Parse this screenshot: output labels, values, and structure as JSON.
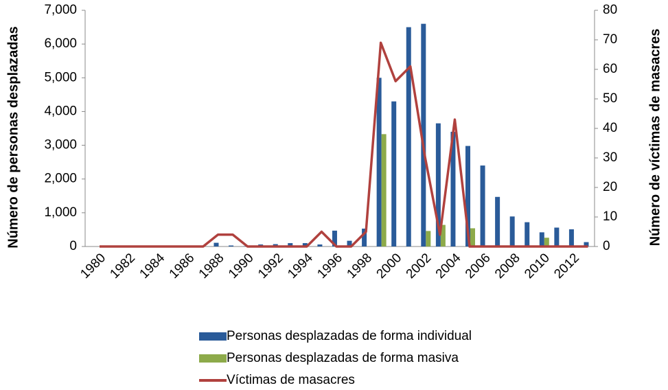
{
  "chart_data": {
    "type": "bar",
    "y_label": "Número de personas desplazadas",
    "y2_label": "Número de víctimas de masacres",
    "categories": [
      "1980",
      null,
      "1982",
      null,
      "1984",
      null,
      "1986",
      null,
      "1988",
      null,
      "1990",
      null,
      "1992",
      null,
      "1994",
      null,
      "1996",
      null,
      "1998",
      null,
      "2000",
      null,
      "2002",
      null,
      "2004",
      null,
      "2006",
      null,
      "2008",
      null,
      "2010",
      null,
      "2012",
      null
    ],
    "series": [
      {
        "name": "Personas desplazadas de forma individual",
        "color": "#2a5b99",
        "type": "bar",
        "values": [
          0,
          0,
          0,
          0,
          0,
          0,
          0,
          0,
          110,
          30,
          10,
          60,
          70,
          100,
          100,
          60,
          470,
          170,
          530,
          5000,
          4300,
          6500,
          6600,
          3650,
          3400,
          2980,
          2400,
          1470,
          890,
          720,
          420,
          560,
          510,
          130
        ]
      },
      {
        "name": "Personas desplazadas de forma masiva",
        "color": "#8daa4a",
        "type": "bar",
        "values": [
          0,
          0,
          0,
          0,
          0,
          0,
          0,
          0,
          0,
          0,
          0,
          0,
          0,
          0,
          0,
          0,
          0,
          0,
          0,
          3330,
          0,
          0,
          460,
          640,
          0,
          540,
          0,
          0,
          0,
          0,
          260,
          0,
          0,
          0
        ]
      },
      {
        "name": "Víctimas de masacres",
        "color": "#b0413e",
        "type": "line",
        "axis": "y2",
        "values": [
          0,
          0,
          0,
          0,
          0,
          0,
          0,
          0,
          4,
          4,
          0,
          0,
          0,
          0,
          0,
          5,
          0,
          0,
          5,
          69,
          56,
          61,
          30,
          4,
          43,
          0,
          0,
          0,
          0,
          0,
          0,
          0,
          0,
          0
        ]
      }
    ],
    "ylim": [
      0,
      7000
    ],
    "yticks": [
      0,
      {
        "value": 1000,
        "label": "1,000"
      },
      {
        "value": 2000,
        "label": "2,000"
      },
      {
        "value": 3000,
        "label": "3,000"
      },
      {
        "value": 4000,
        "label": "4,000"
      },
      {
        "value": 5000,
        "label": "5,000"
      },
      {
        "value": 6000,
        "label": "6,000"
      },
      {
        "value": 7000,
        "label": "7,000"
      }
    ],
    "y2lim": [
      0,
      80
    ],
    "y2ticks": [
      0,
      10,
      20,
      30,
      40,
      50,
      60,
      70,
      80
    ],
    "legend": "bottom"
  }
}
